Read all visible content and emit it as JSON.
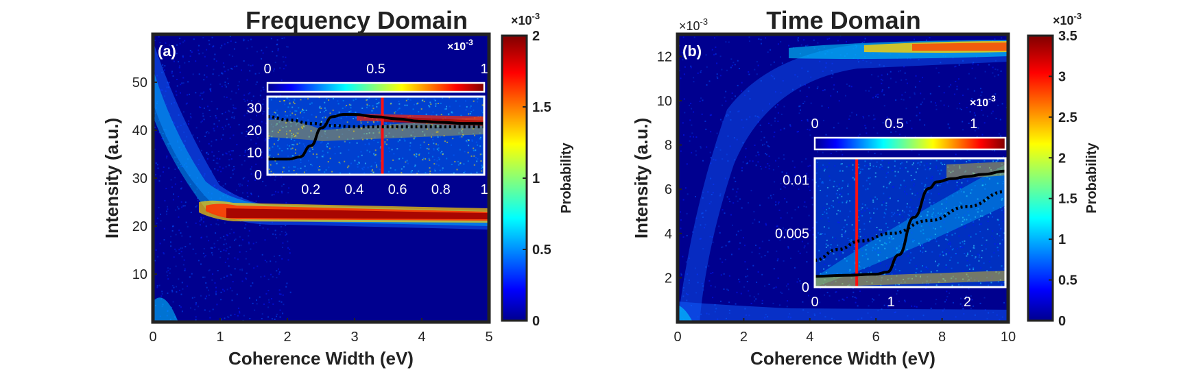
{
  "chart_data": [
    {
      "type": "heatmap",
      "panel_label": "(a)",
      "title": "Frequency Domain",
      "xlabel": "Coherence Width (eV)",
      "ylabel": "Intensity (a.u.)",
      "xlim": [
        0,
        5
      ],
      "ylim": [
        0,
        60
      ],
      "xticks": [
        "0",
        "1",
        "2",
        "3",
        "4",
        "5"
      ],
      "yticks": [
        "10",
        "20",
        "30",
        "40",
        "50"
      ],
      "colorbar": {
        "label": "Probability",
        "exponent": "×10",
        "exponent_power": "-3",
        "range": [
          0,
          2
        ],
        "ticks": [
          "0",
          "0.5",
          "1",
          "1.5",
          "2"
        ]
      },
      "band": {
        "type": "decaying_band",
        "center_high": 55,
        "center_low": 23,
        "decay_start": 0.8
      },
      "inset": {
        "xlim": [
          0,
          1
        ],
        "ylim": [
          0,
          35
        ],
        "xticks": [
          "0.2",
          "0.4",
          "0.6",
          "0.8",
          "1"
        ],
        "yticks": [
          "0",
          "10",
          "20",
          "30"
        ],
        "colorbar": {
          "exponent": "×10",
          "exponent_power": "-3",
          "range": [
            0,
            1
          ],
          "ticks": [
            "0",
            "0.5",
            "1"
          ]
        },
        "red_line_x": 0.53,
        "solid_curve": {
          "x": [
            0.0,
            0.1,
            0.15,
            0.2,
            0.25,
            0.3,
            0.35,
            0.4,
            0.5,
            0.6,
            0.7,
            0.8,
            0.9,
            1.0
          ],
          "y": [
            7,
            7,
            8,
            13,
            21,
            26,
            27,
            27,
            26,
            25,
            24,
            23.5,
            23,
            23
          ]
        },
        "dotted_curve": {
          "x": [
            0.0,
            0.1,
            0.2,
            0.3,
            0.4,
            0.5,
            0.6,
            0.7,
            0.8,
            0.9,
            1.0
          ],
          "y": [
            26,
            24.5,
            23,
            22,
            21.5,
            21.5,
            21.5,
            21.5,
            21.5,
            21.5,
            21.5
          ]
        }
      }
    },
    {
      "type": "heatmap",
      "panel_label": "(b)",
      "title": "Time Domain",
      "xlabel": "Coherence Width (eV)",
      "ylabel": "Intensity (a.u.)",
      "y_exponent": "×10",
      "y_exponent_power": "-3",
      "xlim": [
        0,
        10
      ],
      "ylim": [
        0,
        13
      ],
      "xticks": [
        "0",
        "2",
        "4",
        "6",
        "8",
        "10"
      ],
      "yticks": [
        "2",
        "4",
        "6",
        "8",
        "10",
        "12"
      ],
      "colorbar": {
        "label": "Probability",
        "exponent": "×10",
        "exponent_power": "-3",
        "range": [
          0,
          3.5
        ],
        "ticks": [
          "0",
          "0.5",
          "1",
          "1.5",
          "2",
          "2.5",
          "3",
          "3.5"
        ]
      },
      "band": {
        "type": "rising_band",
        "start": 0.5,
        "end": 12.3
      },
      "inset": {
        "xlim": [
          0,
          2.5
        ],
        "ylim": [
          0,
          0.012
        ],
        "xticks": [
          "0",
          "1",
          "2"
        ],
        "yticks": [
          "0",
          "0.005",
          "0.01"
        ],
        "colorbar": {
          "exponent": "×10",
          "exponent_power": "-3",
          "range": [
            0,
            1.2
          ],
          "ticks": [
            "0",
            "0.5",
            "1"
          ]
        },
        "red_line_x": 0.55,
        "solid_curve": {
          "x": [
            0.0,
            0.4,
            0.8,
            0.95,
            1.1,
            1.3,
            1.5,
            1.6,
            1.8,
            2.0,
            2.2,
            2.5
          ],
          "y": [
            0.001,
            0.0011,
            0.0012,
            0.0014,
            0.003,
            0.0065,
            0.0092,
            0.0098,
            0.0101,
            0.0103,
            0.0105,
            0.0108
          ]
        },
        "dotted_curve": {
          "x": [
            0.0,
            0.3,
            0.6,
            1.0,
            1.5,
            2.0,
            2.5
          ],
          "y": [
            0.0025,
            0.0035,
            0.0043,
            0.005,
            0.0062,
            0.0075,
            0.0089
          ]
        }
      }
    }
  ]
}
